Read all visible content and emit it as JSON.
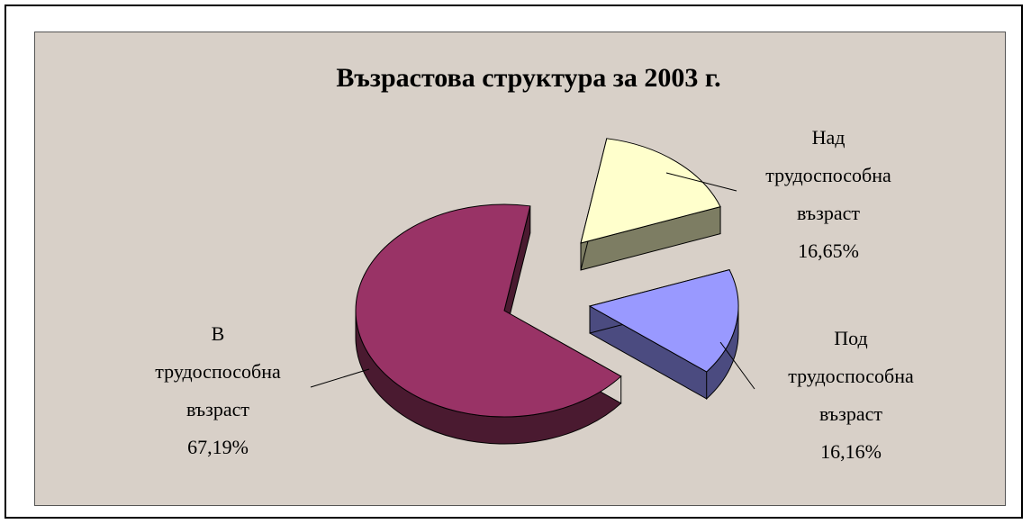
{
  "chart_data": {
    "type": "pie",
    "title": "Възрастова структура за 2003 г.",
    "slices": [
      {
        "label_lines": [
          "В",
          "трудоспособна",
          "възраст"
        ],
        "value": 67.19,
        "value_label": "67,19%",
        "color": "#993366",
        "side_color": "#4a1a30"
      },
      {
        "label_lines": [
          "Над",
          "трудоспособна",
          "възраст"
        ],
        "value": 16.65,
        "value_label": "16,65%",
        "color": "#ffffcc",
        "side_color": "#7d7d63"
      },
      {
        "label_lines": [
          "Под",
          "трудоспособна",
          "възраст"
        ],
        "value": 16.16,
        "value_label": "16,16%",
        "color": "#9999ff",
        "side_color": "#4b4b80"
      }
    ],
    "legend": "none",
    "style": "3d-exploded"
  }
}
